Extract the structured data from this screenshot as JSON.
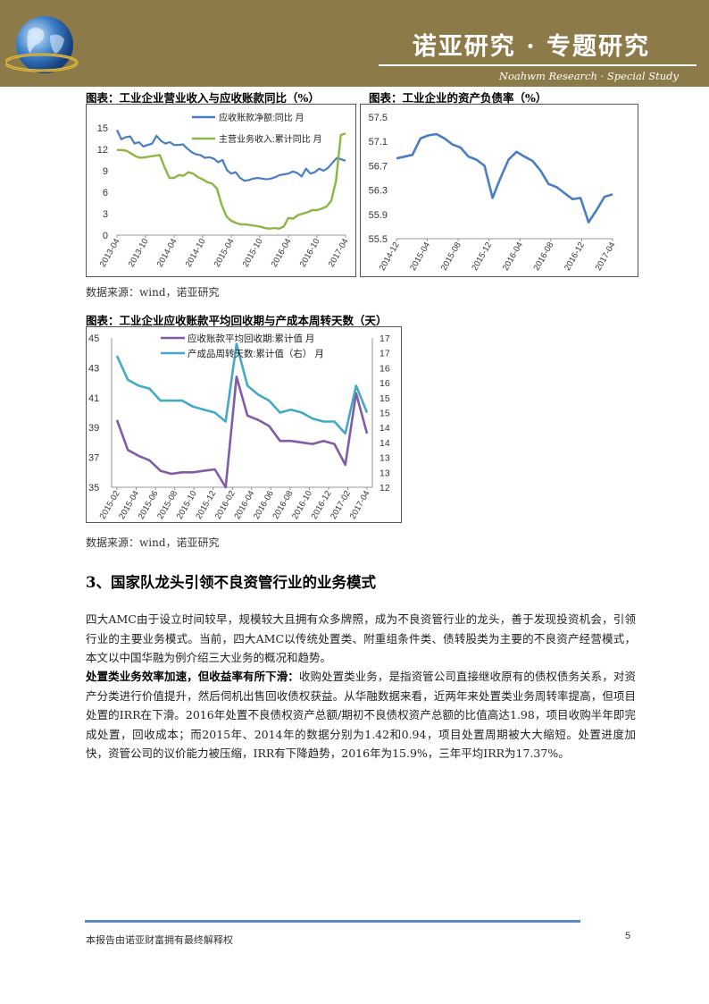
{
  "header": {
    "title": "诺亚研究 · 专题研究",
    "subtitle": "Noahwm Research · Special Study"
  },
  "figures": {
    "fig1_caption": "图表：工业企业营业收入与应收账款同比（%）",
    "fig2_caption": "图表：工业企业的资产负债率（%）",
    "fig3_caption": "图表：工业企业应收账款平均回收期与产成本周转天数（天）",
    "source1": "数据来源：wind，诺亚研究",
    "source2": "数据来源：wind，诺亚研究"
  },
  "section": {
    "title": "3、国家队龙头引领不良资管行业的业务模式",
    "para1": "四大AMC由于设立时间较早，规模较大且拥有众多牌照，成为不良资管行业的龙头，善于发现投资机会，引领行业的主要业务模式。当前，四大AMC以传统处置类、附重组条件类、债转股类为主要的不良资产经营模式，本文以中国华融为例介绍三大业务的概况和趋势。",
    "para2_bold": "处置类业务效率加速，但收益率有所下滑：",
    "para2_rest": "收购处置类业务，是指资管公司直接继收原有的债权债务关系，对资产分类进行价值提升，然后伺机出售回收债权获益。从华融数据来看，近两年来处置类业务周转率提高，但项目处置的IRR在下滑。2016年处置不良债权资产总额/期初不良债权资产总额的比值高达1.98，项目收购半年即完成处置，回收成本；而2015年、2014年的数据分别为1.42和0.94，项目处置周期被大大缩短。处置进度加快，资管公司的议价能力被压缩，IRR有下降趋势，2016年为15.9%，三年平均IRR为17.37%。"
  },
  "footer": {
    "text": "本报告由诺亚财富拥有最终解释权",
    "page": "5"
  },
  "chart_data": [
    {
      "type": "line",
      "id": "fig1",
      "x_ticks": [
        "2013-04",
        "2013-10",
        "2014-04",
        "2014-10",
        "2015-04",
        "2015-10",
        "2016-04",
        "2016-10",
        "2017-04"
      ],
      "ylim": [
        0,
        15
      ],
      "yticks": [
        0,
        3,
        6,
        9,
        12,
        15
      ],
      "series": [
        {
          "name": "应收账款净额:同比 月",
          "color": "#4a7dc4",
          "values": [
            14.7,
            13.4,
            13.7,
            13.8,
            12.8,
            13.0,
            12.4,
            12.6,
            12.8,
            13.9,
            13.2,
            12.8,
            13.0,
            12.6,
            12.6,
            12.7,
            12.1,
            11.6,
            11.3,
            11.2,
            10.8,
            10.9,
            10.7,
            10.2,
            10.5,
            9.1,
            8.6,
            8.8,
            8.0,
            7.6,
            7.7,
            7.9,
            8.0,
            7.9,
            7.8,
            7.9,
            8.1,
            8.4,
            8.5,
            8.6,
            8.9,
            8.7,
            8.2,
            9.3,
            8.6,
            8.8,
            9.3,
            9.0,
            9.4,
            10.1,
            10.8,
            10.6,
            10.4
          ]
        },
        {
          "name": "主营业务收入:累计同比 月",
          "color": "#8db545",
          "values": [
            11.9,
            11.9,
            11.8,
            11.4,
            11.0,
            10.8,
            10.9,
            11.0,
            11.1,
            11.2,
            9.5,
            8.0,
            8.0,
            8.4,
            8.3,
            8.8,
            8.6,
            8.1,
            7.8,
            7.4,
            7.2,
            6.5,
            4.2,
            2.6,
            2.0,
            1.7,
            1.5,
            1.5,
            1.4,
            1.3,
            1.2,
            1.0,
            0.9,
            1.0,
            0.9,
            1.2,
            2.4,
            2.3,
            2.8,
            3.0,
            3.2,
            3.5,
            3.5,
            3.7,
            4.0,
            4.8,
            7.6,
            14.0,
            14.2
          ]
        }
      ]
    },
    {
      "type": "line",
      "id": "fig2",
      "x_ticks": [
        "2014-12",
        "2015-04",
        "2015-08",
        "2015-12",
        "2016-04",
        "2016-08",
        "2016-12",
        "2017-04"
      ],
      "ylim": [
        55.5,
        57.5
      ],
      "yticks": [
        55.5,
        55.9,
        56.3,
        56.7,
        57.1,
        57.5
      ],
      "series": [
        {
          "name": "资产负债率",
          "color": "#4a7dc4",
          "values": [
            56.82,
            56.85,
            56.88,
            57.15,
            57.2,
            57.22,
            57.15,
            57.05,
            57.0,
            56.85,
            56.8,
            56.7,
            56.17,
            56.5,
            56.8,
            56.93,
            56.85,
            56.78,
            56.62,
            56.4,
            56.35,
            56.25,
            56.15,
            56.17,
            55.77,
            55.97,
            56.19,
            56.23
          ]
        }
      ]
    },
    {
      "type": "line",
      "id": "fig3",
      "x_ticks": [
        "2015-02",
        "2015-04",
        "2015-06",
        "2015-08",
        "2015-10",
        "2015-12",
        "2016-02",
        "2016-04",
        "2016-06",
        "2016-08",
        "2016-10",
        "2016-12",
        "2017-02",
        "2017-04"
      ],
      "ylim_left": [
        35,
        45
      ],
      "yticks_left": [
        35,
        37,
        39,
        41,
        43,
        45
      ],
      "ylim_right": [
        12,
        17
      ],
      "yticks_right": [
        12,
        12.5,
        13,
        13.5,
        14,
        14.5,
        15,
        15.5,
        16,
        16.5,
        17
      ],
      "yticks_right_labels": [
        "12",
        "13",
        "13",
        "14",
        "14",
        "15",
        "15",
        "16",
        "16",
        "17",
        "17"
      ],
      "series": [
        {
          "name": "应收账款平均回收期:累计值 月",
          "color": "#7f5ba8",
          "axis": "left",
          "values": [
            39.5,
            37.5,
            37.1,
            36.8,
            36.1,
            35.9,
            36.0,
            36.0,
            36.1,
            36.2,
            35.0,
            42.4,
            39.8,
            39.5,
            39.1,
            38.1,
            38.1,
            38.0,
            37.9,
            38.1,
            37.9,
            36.5,
            41.3,
            38.6
          ]
        },
        {
          "name": "产成品周转天数:累计值（右） 月",
          "color": "#44a9c4",
          "axis": "right",
          "values": [
            16.4,
            15.6,
            15.4,
            15.3,
            14.9,
            14.9,
            14.9,
            14.7,
            14.6,
            14.5,
            14.2,
            16.8,
            15.4,
            15.1,
            14.9,
            14.5,
            14.6,
            14.5,
            14.3,
            14.2,
            14.2,
            13.8,
            15.4,
            14.5
          ]
        }
      ]
    }
  ]
}
